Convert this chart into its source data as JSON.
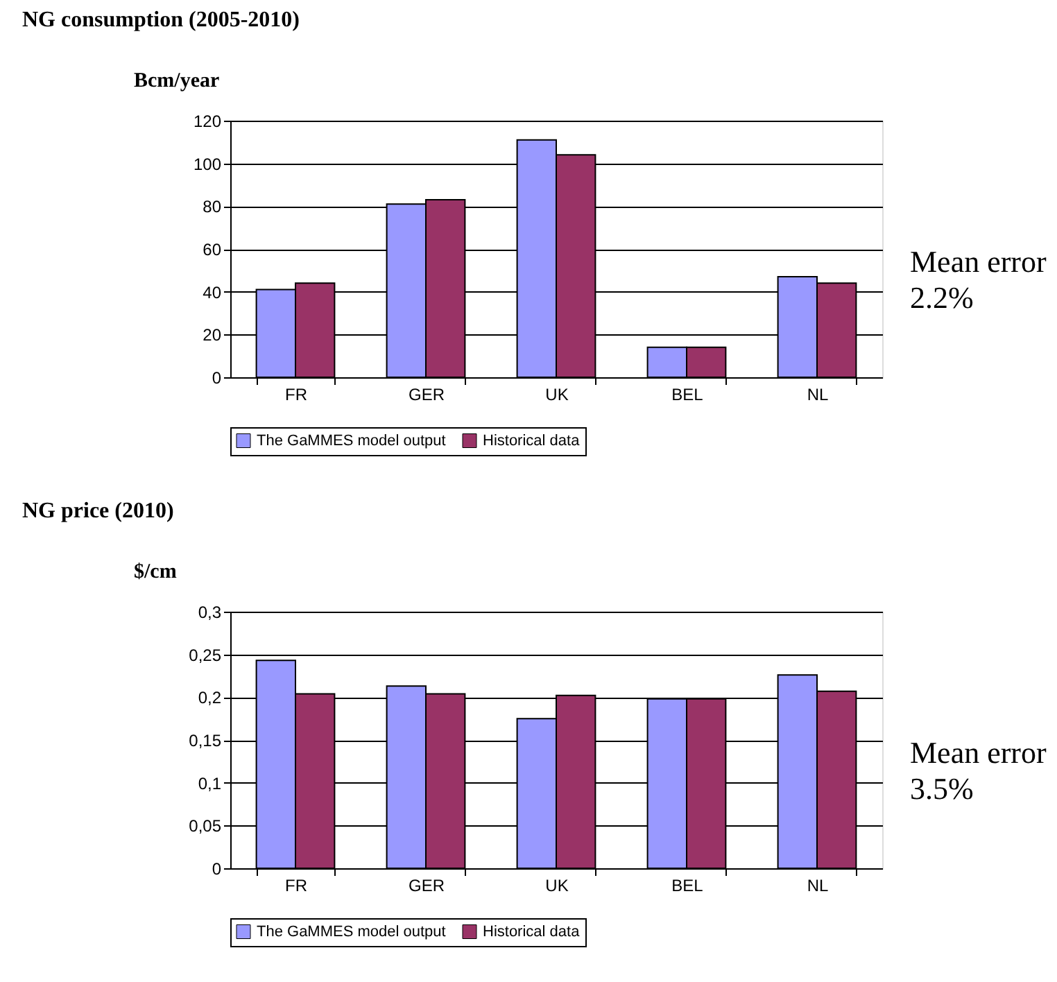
{
  "chart_data": [
    {
      "type": "bar",
      "title": "NG consumption (2005-2010)",
      "ylabel": "Bcm/year",
      "categories": [
        "FR",
        "GER",
        "UK",
        "BEL",
        "NL"
      ],
      "series": [
        {
          "name": "The GaMMES model output",
          "color": "#9999ff",
          "values": [
            41,
            81,
            111,
            14,
            47
          ]
        },
        {
          "name": "Historical data",
          "color": "#993366",
          "values": [
            44,
            83,
            104,
            14,
            44
          ]
        }
      ],
      "ylim": [
        0,
        120
      ],
      "yticks": [
        0,
        20,
        40,
        60,
        80,
        100,
        120
      ],
      "grid": "y",
      "legend": "bottom",
      "annotations": [
        "Mean error 2.2%"
      ]
    },
    {
      "type": "bar",
      "title": "NG price (2010)",
      "ylabel": "$/cm",
      "categories": [
        "FR",
        "GER",
        "UK",
        "BEL",
        "NL"
      ],
      "series": [
        {
          "name": "The GaMMES model output",
          "color": "#9999ff",
          "values": [
            0.243,
            0.213,
            0.175,
            0.198,
            0.226
          ]
        },
        {
          "name": "Historical data",
          "color": "#993366",
          "values": [
            0.204,
            0.204,
            0.202,
            0.198,
            0.207
          ]
        }
      ],
      "ylim": [
        0,
        0.3
      ],
      "yticks": [
        {
          "value": 0,
          "label": "0"
        },
        {
          "value": 0.05,
          "label": "0,05"
        },
        {
          "value": 0.1,
          "label": "0,1"
        },
        {
          "value": 0.15,
          "label": "0,15"
        },
        {
          "value": 0.2,
          "label": "0,2"
        },
        {
          "value": 0.25,
          "label": "0,25"
        },
        {
          "value": 0.3,
          "label": "0,3"
        }
      ],
      "grid": "y",
      "legend": "bottom",
      "annotations": [
        "Mean error 3.5%"
      ]
    }
  ]
}
